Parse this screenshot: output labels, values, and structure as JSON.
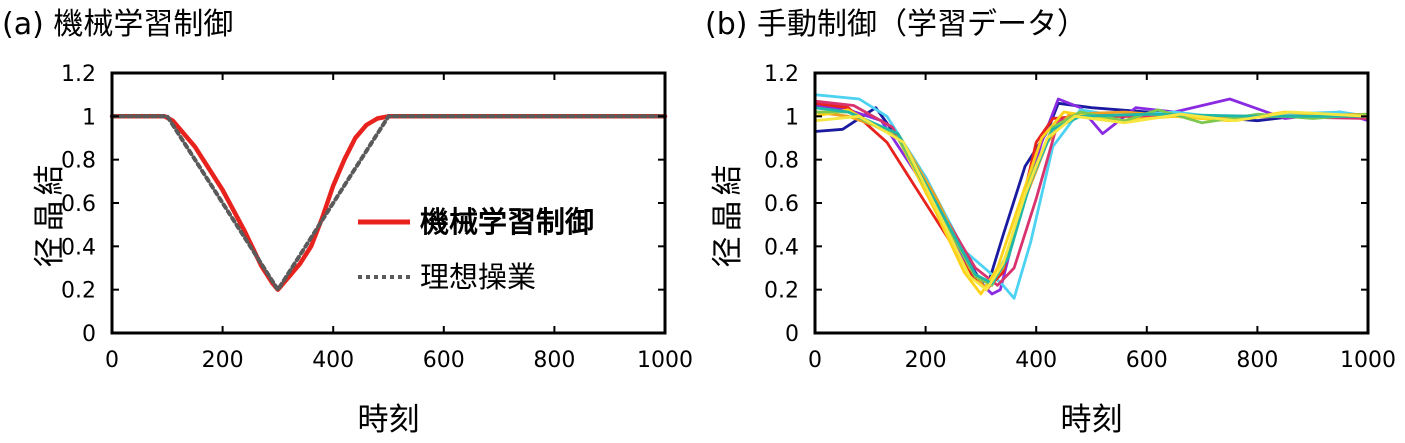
{
  "chart_data": [
    {
      "type": "line",
      "title": "(a) 機械学習制御",
      "xlabel": "時刻",
      "ylabel": "結晶径",
      "xlim": [
        0,
        1000
      ],
      "ylim": [
        0,
        1.2
      ],
      "xticks": [
        0,
        200,
        400,
        600,
        800,
        1000
      ],
      "yticks": [
        0,
        0.2,
        0.4,
        0.6,
        0.8,
        1,
        1.2
      ],
      "ytick_labels": [
        "0",
        "0.2",
        "0.4",
        "0.6",
        "0.8",
        "1",
        "1.2"
      ],
      "xtick_labels": [
        "0",
        "200",
        "400",
        "600",
        "800",
        "1000"
      ],
      "legend_position": "center-right",
      "series": [
        {
          "name": "機械学習制御",
          "color": "#e8221d",
          "style": "solid",
          "x": [
            0,
            95,
            110,
            150,
            200,
            240,
            270,
            290,
            300,
            320,
            340,
            360,
            380,
            400,
            420,
            440,
            460,
            480,
            500,
            520,
            600,
            800,
            1000
          ],
          "y": [
            1.0,
            1.0,
            0.98,
            0.86,
            0.66,
            0.47,
            0.31,
            0.23,
            0.2,
            0.26,
            0.32,
            0.4,
            0.53,
            0.68,
            0.8,
            0.9,
            0.96,
            0.99,
            1.0,
            1.0,
            1.0,
            1.0,
            1.0
          ]
        },
        {
          "name": "理想操業",
          "color": "#5a5a5a",
          "style": "dotted",
          "x": [
            0,
            100,
            300,
            500,
            1000
          ],
          "y": [
            1.0,
            1.0,
            0.2,
            1.0,
            1.0
          ]
        }
      ]
    },
    {
      "type": "line",
      "title": "(b) 手動制御（学習データ）",
      "xlabel": "時刻",
      "ylabel": "結晶径",
      "xlim": [
        0,
        1000
      ],
      "ylim": [
        0,
        1.2
      ],
      "xticks": [
        0,
        200,
        400,
        600,
        800,
        1000
      ],
      "yticks": [
        0,
        0.2,
        0.4,
        0.6,
        0.8,
        1,
        1.2
      ],
      "ytick_labels": [
        "0",
        "0.2",
        "0.4",
        "0.6",
        "0.8",
        "1",
        "1.2"
      ],
      "xtick_labels": [
        "0",
        "200",
        "400",
        "600",
        "800",
        "1000"
      ],
      "series": [
        {
          "color": "#1a1aa0",
          "x": [
            0,
            50,
            110,
            200,
            280,
            310,
            340,
            380,
            420,
            440,
            500,
            600,
            700,
            800,
            900,
            1000
          ],
          "y": [
            0.93,
            0.94,
            1.04,
            0.72,
            0.32,
            0.2,
            0.45,
            0.77,
            0.93,
            1.06,
            1.04,
            1.02,
            1.0,
            0.98,
            1.01,
            0.99
          ]
        },
        {
          "color": "#8a2be2",
          "x": [
            0,
            60,
            120,
            200,
            280,
            320,
            335,
            370,
            410,
            440,
            480,
            520,
            580,
            650,
            750,
            850,
            950,
            1000
          ],
          "y": [
            1.05,
            1.03,
            0.98,
            0.67,
            0.28,
            0.18,
            0.2,
            0.55,
            0.88,
            1.08,
            1.04,
            0.92,
            1.04,
            1.02,
            1.08,
            0.99,
            1.02,
            0.98
          ]
        },
        {
          "color": "#4dd2f2",
          "x": [
            0,
            80,
            130,
            200,
            270,
            320,
            340,
            360,
            390,
            430,
            480,
            550,
            650,
            750,
            850,
            950,
            1000
          ],
          "y": [
            1.1,
            1.08,
            1.0,
            0.72,
            0.38,
            0.27,
            0.22,
            0.16,
            0.42,
            0.86,
            1.03,
            1.0,
            1.02,
            0.99,
            1.01,
            1.02,
            1.0
          ]
        },
        {
          "color": "#e8221d",
          "x": [
            0,
            60,
            130,
            180,
            230,
            280,
            310,
            340,
            370,
            400,
            430,
            480,
            600,
            800,
            1000
          ],
          "y": [
            1.06,
            1.04,
            0.88,
            0.68,
            0.48,
            0.28,
            0.2,
            0.28,
            0.55,
            0.88,
            0.99,
            1.0,
            1.0,
            1.0,
            1.0
          ]
        },
        {
          "color": "#d8336e",
          "x": [
            0,
            70,
            140,
            220,
            290,
            330,
            360,
            400,
            440,
            480,
            600,
            800,
            1000
          ],
          "y": [
            1.07,
            1.05,
            0.95,
            0.6,
            0.3,
            0.22,
            0.3,
            0.62,
            0.98,
            1.01,
            1.0,
            1.0,
            0.99
          ]
        },
        {
          "color": "#f0a020",
          "x": [
            0,
            60,
            150,
            220,
            280,
            310,
            340,
            380,
            420,
            460,
            560,
            700,
            850,
            1000
          ],
          "y": [
            1.02,
            1.0,
            0.92,
            0.62,
            0.3,
            0.2,
            0.3,
            0.62,
            0.88,
            1.01,
            1.02,
            0.99,
            1.0,
            1.01
          ]
        },
        {
          "color": "#ffd21a",
          "x": [
            0,
            60,
            150,
            220,
            270,
            300,
            330,
            370,
            410,
            450,
            550,
            650,
            750,
            850,
            1000
          ],
          "y": [
            1.0,
            1.03,
            0.9,
            0.55,
            0.28,
            0.18,
            0.3,
            0.6,
            0.9,
            1.02,
            0.98,
            1.0,
            0.98,
            1.02,
            1.0
          ]
        },
        {
          "color": "#7ec850",
          "x": [
            0,
            60,
            150,
            220,
            290,
            320,
            350,
            390,
            430,
            480,
            560,
            620,
            700,
            800,
            900,
            1000
          ],
          "y": [
            1.02,
            1.02,
            0.9,
            0.58,
            0.26,
            0.22,
            0.38,
            0.72,
            0.95,
            1.02,
            0.98,
            1.03,
            0.97,
            1.01,
            0.99,
            1.01
          ]
        },
        {
          "color": "#20b7a8",
          "x": [
            0,
            60,
            150,
            230,
            290,
            320,
            350,
            390,
            430,
            480,
            600,
            800,
            1000
          ],
          "y": [
            1.04,
            1.02,
            0.92,
            0.55,
            0.27,
            0.23,
            0.35,
            0.7,
            0.94,
            1.0,
            1.01,
            1.0,
            1.0
          ]
        },
        {
          "color": "#f5e642",
          "x": [
            0,
            80,
            160,
            230,
            280,
            310,
            340,
            380,
            420,
            470,
            560,
            660,
            760,
            860,
            1000
          ],
          "y": [
            0.98,
            1.0,
            0.88,
            0.52,
            0.26,
            0.2,
            0.32,
            0.64,
            0.9,
            1.0,
            0.97,
            1.01,
            0.98,
            1.02,
            1.0
          ]
        }
      ]
    }
  ]
}
